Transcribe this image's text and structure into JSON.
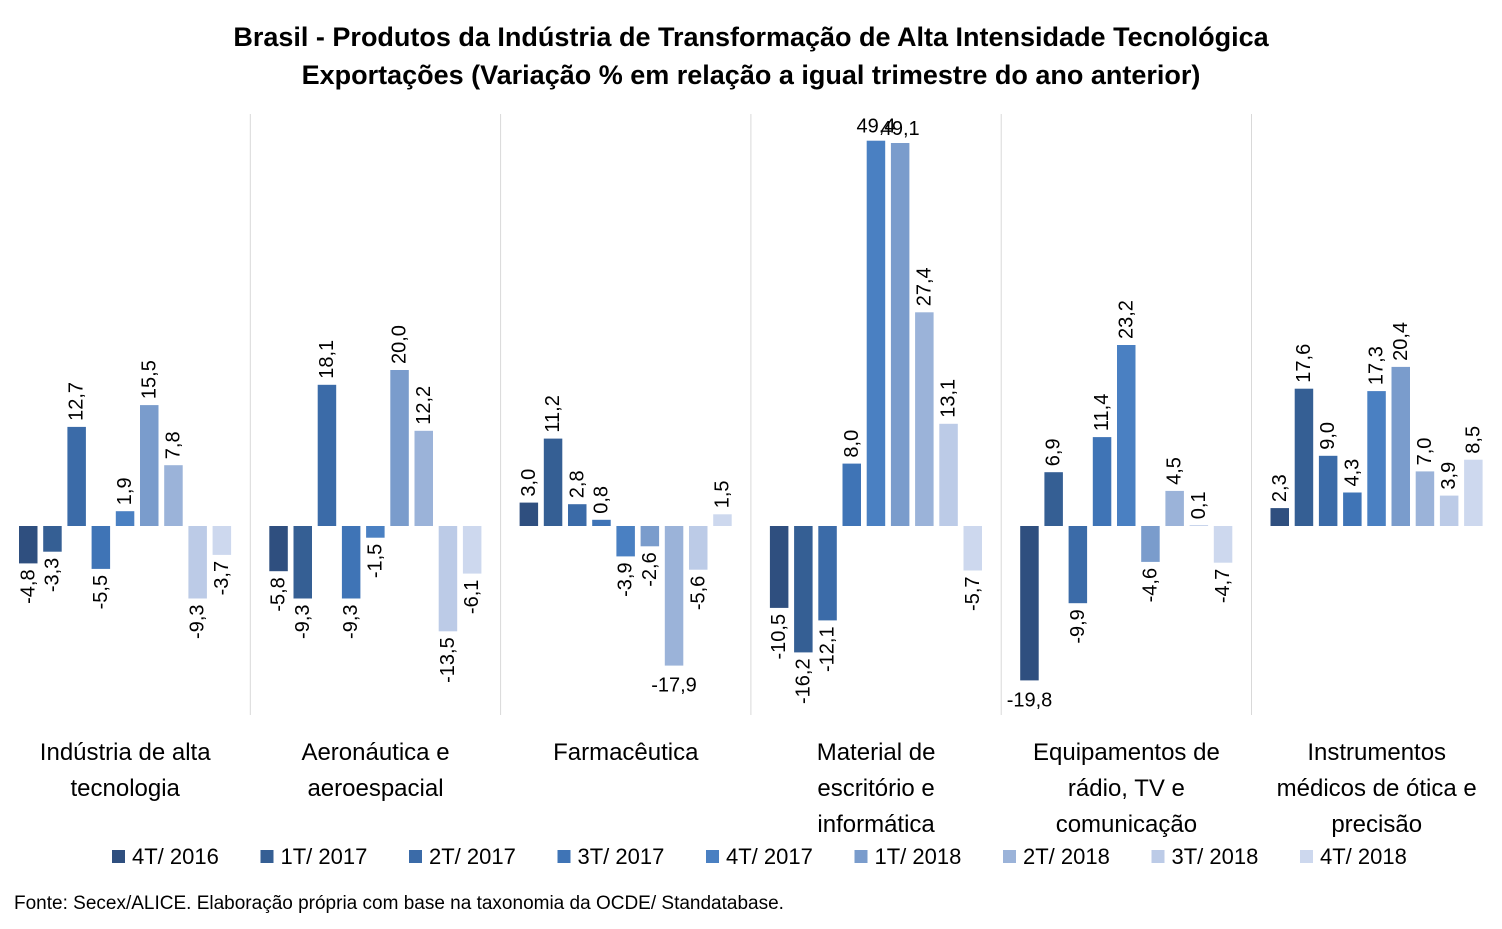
{
  "chart_data": {
    "type": "bar",
    "title": "Brasil - Produtos da Indústria de Transformação de Alta Intensidade Tecnológica",
    "subtitle": "Exportações (Variação % em relação a igual trimestre do ano anterior)",
    "categories": [
      "Indústria de alta tecnologia",
      "Aeronáutica e aeroespacial",
      "Farmacêutica",
      "Material de escritório e informática",
      "Equipamentos de rádio, TV e comunicação",
      "Instrumentos médicos de ótica e precisão"
    ],
    "category_lines": [
      [
        "Indústria de alta",
        "tecnologia"
      ],
      [
        "Aeronáutica e",
        "aeroespacial"
      ],
      [
        "Farmacêutica"
      ],
      [
        "Material de",
        "escritório e",
        "informática"
      ],
      [
        "Equipamentos de",
        "rádio, TV e",
        "comunicação"
      ],
      [
        "Instrumentos",
        "médicos de ótica e",
        "precisão"
      ]
    ],
    "series": [
      {
        "name": "4T/ 2016",
        "color": "#2f4f7f",
        "values": [
          -4.8,
          -5.8,
          3.0,
          -10.5,
          -19.8,
          2.3
        ],
        "labels": [
          "-4,8",
          "-5,8",
          "3,0",
          "-10,5",
          "-19,8",
          "2,3"
        ]
      },
      {
        "name": "1T/ 2017",
        "color": "#355f94",
        "values": [
          -3.3,
          -9.3,
          11.2,
          -16.2,
          6.9,
          17.6
        ],
        "labels": [
          "-3,3",
          "-9,3",
          "11,2",
          "-16,2",
          "6,9",
          "17,6"
        ]
      },
      {
        "name": "2T/ 2017",
        "color": "#3b6ba8",
        "values": [
          12.7,
          18.1,
          2.8,
          -12.1,
          -9.9,
          9.0
        ],
        "labels": [
          "12,7",
          "18,1",
          "2,8",
          "-12,1",
          "-9,9",
          "9,0"
        ]
      },
      {
        "name": "3T/ 2017",
        "color": "#3f74b6",
        "values": [
          -5.5,
          -9.3,
          0.8,
          8.0,
          11.4,
          4.3
        ],
        "labels": [
          "-5,5",
          "-9,3",
          "0,8",
          "8,0",
          "11,4",
          "4,3"
        ]
      },
      {
        "name": "4T/ 2017",
        "color": "#4a80c2",
        "values": [
          1.9,
          -1.5,
          -3.9,
          49.4,
          23.2,
          17.3
        ],
        "labels": [
          "1,9",
          "-1,5",
          "-3,9",
          "49,4",
          "23,2",
          "17,3"
        ]
      },
      {
        "name": "1T/ 2018",
        "color": "#7a9ccc",
        "values": [
          15.5,
          20.0,
          -2.6,
          49.1,
          -4.6,
          20.4
        ],
        "labels": [
          "15,5",
          "20,0",
          "-2,6",
          "49,1",
          "-4,6",
          "20,4"
        ]
      },
      {
        "name": "2T/ 2018",
        "color": "#9bb3d9",
        "values": [
          7.8,
          12.2,
          -17.9,
          27.4,
          4.5,
          7.0
        ],
        "labels": [
          "7,8",
          "12,2",
          "-17,9",
          "27,4",
          "4,5",
          "7,0"
        ]
      },
      {
        "name": "3T/ 2018",
        "color": "#bccbe7",
        "values": [
          -9.3,
          -13.5,
          -5.6,
          13.1,
          0.1,
          3.9
        ],
        "labels": [
          "-9,3",
          "-13,5",
          "-5,6",
          "13,1",
          "0,1",
          "3,9"
        ]
      },
      {
        "name": "4T/ 2018",
        "color": "#cdd8ee",
        "values": [
          -3.7,
          -6.1,
          1.5,
          -5.7,
          -4.7,
          8.5
        ],
        "labels": [
          "-3,7",
          "-6,1",
          "1,5",
          "-5,7",
          "-4,7",
          "8,5"
        ]
      }
    ],
    "legend_position": "bottom",
    "grid": false,
    "source": "Fonte: Secex/ALICE. Elaboração própria com base na taxonomia da OCDE/ Standatabase."
  }
}
